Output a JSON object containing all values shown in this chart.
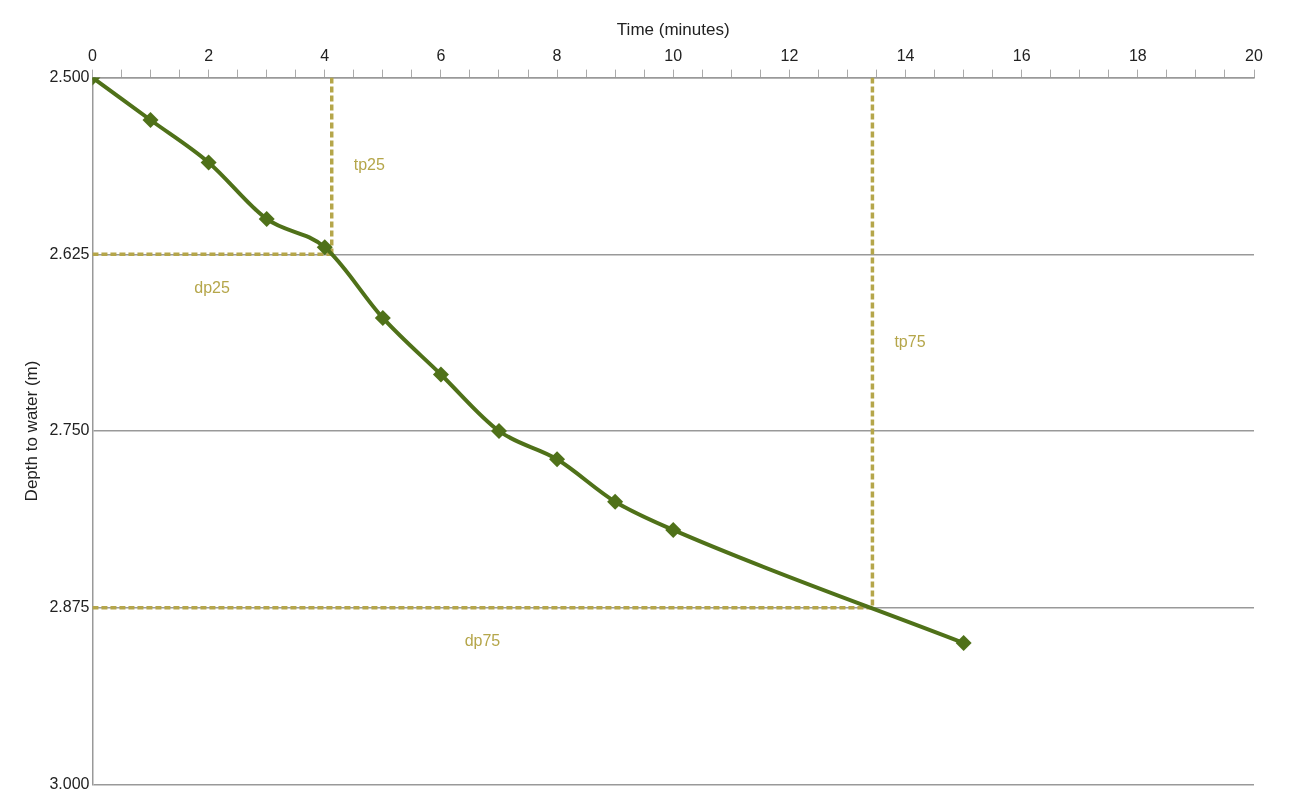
{
  "chart_data": {
    "type": "line",
    "xlabel": "Time (minutes)",
    "ylabel": "Depth to water (m)",
    "xlim": [
      0,
      20
    ],
    "xticks": [
      0,
      {
        "value": 0.5,
        "label": null
      },
      {
        "value": 1,
        "label": null
      },
      {
        "value": 1.5,
        "label": null
      },
      2,
      {
        "value": 2.5,
        "label": null
      },
      {
        "value": 3,
        "label": null
      },
      {
        "value": 3.5,
        "label": null
      },
      4,
      {
        "value": 4.5,
        "label": null
      },
      {
        "value": 5,
        "label": null
      },
      {
        "value": 5.5,
        "label": null
      },
      6,
      {
        "value": 6.5,
        "label": null
      },
      {
        "value": 7,
        "label": null
      },
      {
        "value": 7.5,
        "label": null
      },
      8,
      {
        "value": 8.5,
        "label": null
      },
      {
        "value": 9,
        "label": null
      },
      {
        "value": 9.5,
        "label": null
      },
      10,
      {
        "value": 10.5,
        "label": null
      },
      {
        "value": 11,
        "label": null
      },
      {
        "value": 11.5,
        "label": null
      },
      12,
      {
        "value": 12.5,
        "label": null
      },
      {
        "value": 13,
        "label": null
      },
      {
        "value": 13.5,
        "label": null
      },
      14,
      {
        "value": 14.5,
        "label": null
      },
      {
        "value": 15,
        "label": null
      },
      {
        "value": 15.5,
        "label": null
      },
      16,
      {
        "value": 16.5,
        "label": null
      },
      {
        "value": 17,
        "label": null
      },
      {
        "value": 17.5,
        "label": null
      },
      18,
      {
        "value": 18.5,
        "label": null
      },
      {
        "value": 19,
        "label": null
      },
      {
        "value": 19.5,
        "label": null
      },
      20
    ],
    "ylim": [
      3.0,
      2.5
    ],
    "yticks": [
      {
        "value": 2.5,
        "label": "2.500"
      },
      {
        "value": 2.625,
        "label": "2.625"
      },
      {
        "value": 2.75,
        "label": "2.750"
      },
      {
        "value": 2.875,
        "label": "2.875"
      },
      {
        "value": 3.0,
        "label": "3.000"
      }
    ],
    "grid": "y",
    "legend": false,
    "marker": "diamond",
    "series": [
      {
        "color": "#4f7119",
        "x": [
          0,
          1,
          2,
          3,
          4,
          5,
          6,
          7,
          8,
          9,
          10,
          15
        ],
        "values": [
          2.5,
          2.53,
          2.56,
          2.6,
          2.62,
          2.67,
          2.71,
          2.75,
          2.77,
          2.8,
          2.82,
          2.9
        ]
      },
      {
        "name": "tp25",
        "type": "line",
        "marker": "none",
        "line_style": "dashed",
        "color": "#b5a64a",
        "x": [
          4.12,
          4.12
        ],
        "values": [
          2.5,
          2.625
        ]
      },
      {
        "name": "dp25",
        "type": "line",
        "marker": "none",
        "line_style": "dashed",
        "color": "#b5a64a",
        "x": [
          0,
          4.12
        ],
        "values": [
          2.625,
          2.625
        ]
      },
      {
        "name": "tp75",
        "type": "line",
        "marker": "none",
        "line_style": "dashed",
        "color": "#b5a64a",
        "x": [
          13.43,
          13.43
        ],
        "values": [
          2.5,
          2.875
        ]
      },
      {
        "name": "dp75",
        "type": "line",
        "marker": "none",
        "line_style": "dashed",
        "color": "#b5a64a",
        "x": [
          0,
          13.43
        ],
        "values": [
          2.875,
          2.875
        ]
      }
    ]
  }
}
